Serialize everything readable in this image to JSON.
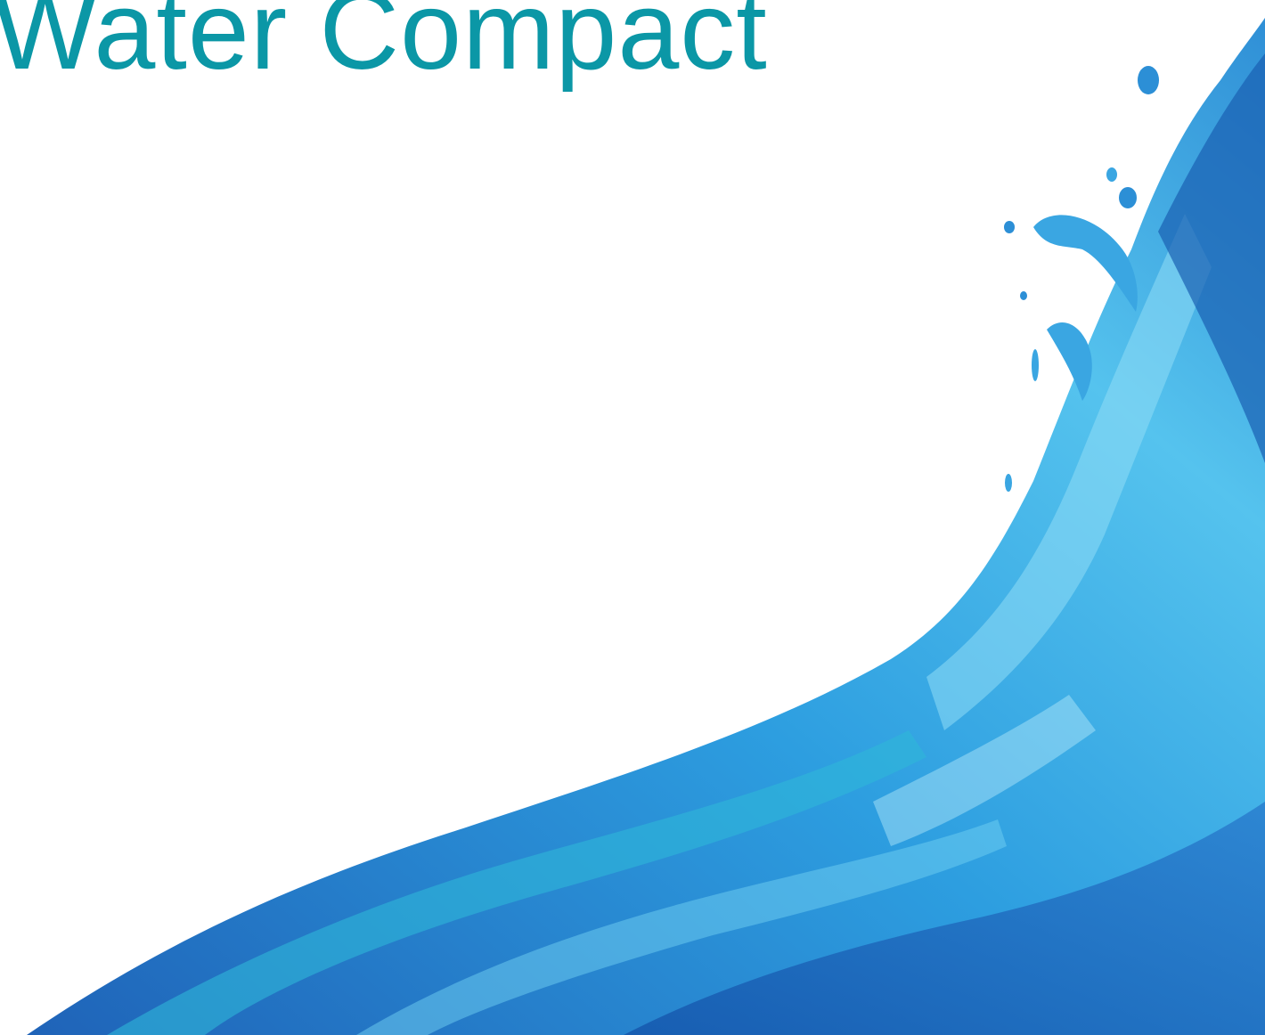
{
  "title": "Water Compact"
}
